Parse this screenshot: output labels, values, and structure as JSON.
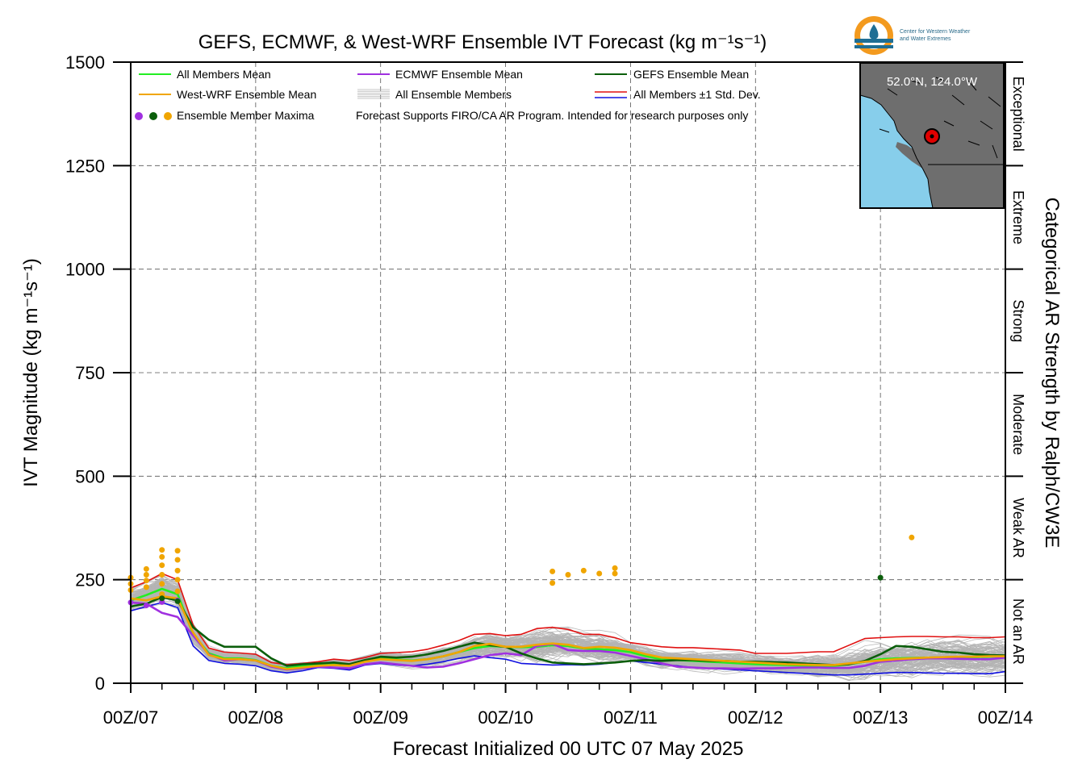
{
  "colors": {
    "all_mean": "#22ee22",
    "westwrf_mean": "#f0a500",
    "ecmwf_mean": "#a030e0",
    "gefs_mean": "#0b5e0b",
    "members": "#b4b4b4",
    "std_upper": "#e01010",
    "std_lower": "#1010e0",
    "map_land": "#6e6e6e",
    "map_ocean": "#87ceeb",
    "logo_orange": "#f39a1e",
    "logo_blue": "#1f6e94"
  },
  "logo": {
    "line1": "Center for Western Weather",
    "line2": "and Water Extremes"
  },
  "inset_map": {
    "location_label": "52.0°N, 124.0°W"
  },
  "chart_data": {
    "type": "line",
    "title": "GEFS, ECMWF, & West-WRF Ensemble IVT Forecast (kg m⁻¹s⁻¹)",
    "xlabel": "Forecast Initialized 00 UTC 07 May 2025",
    "ylabel": "IVT Magnitude (kg m⁻¹s⁻¹)",
    "right_axis_label": "Categorical AR Strength by Ralph/CW3E",
    "xlim_hours": [
      0,
      168
    ],
    "ylim": [
      0,
      1500
    ],
    "grid": true,
    "x_ticks": [
      {
        "hour": 0,
        "label": "00Z/07"
      },
      {
        "hour": 24,
        "label": "00Z/08"
      },
      {
        "hour": 48,
        "label": "00Z/09"
      },
      {
        "hour": 72,
        "label": "00Z/10"
      },
      {
        "hour": 96,
        "label": "00Z/11"
      },
      {
        "hour": 120,
        "label": "00Z/12"
      },
      {
        "hour": 144,
        "label": "00Z/13"
      },
      {
        "hour": 168,
        "label": "00Z/14"
      }
    ],
    "y_ticks": [
      0,
      250,
      500,
      750,
      1000,
      1250,
      1500
    ],
    "ar_categories": [
      {
        "label": "Not an AR",
        "min": 0,
        "max": 250
      },
      {
        "label": "Weak AR",
        "min": 250,
        "max": 500
      },
      {
        "label": "Moderate",
        "min": 500,
        "max": 750
      },
      {
        "label": "Strong",
        "min": 750,
        "max": 1000
      },
      {
        "label": "Extreme",
        "min": 1000,
        "max": 1250
      },
      {
        "label": "Exceptional",
        "min": 1250,
        "max": 1500
      }
    ],
    "legend": {
      "placement": "top-left",
      "items": [
        {
          "label": "All Members Mean",
          "kind": "line",
          "series": "all_mean"
        },
        {
          "label": "ECMWF Ensemble Mean",
          "kind": "line",
          "series": "ecmwf_mean"
        },
        {
          "label": "GEFS Ensemble Mean",
          "kind": "line",
          "series": "gefs_mean"
        },
        {
          "label": "West-WRF Ensemble Mean",
          "kind": "line",
          "series": "westwrf_mean"
        },
        {
          "label": "All Ensemble Members",
          "kind": "members"
        },
        {
          "label": "All Members ±1 Std. Dev.",
          "kind": "std"
        },
        {
          "label": "Ensemble Member Maxima",
          "kind": "dots"
        }
      ],
      "note": "Forecast Supports FIRO/CA AR Program. Intended for research purposes only"
    },
    "series": [
      {
        "key": "std_upper",
        "name": "All Members ±1 Std. Dev.",
        "x": [
          0,
          3,
          6,
          9,
          12,
          15,
          18,
          21,
          24,
          27,
          30,
          33,
          36,
          39,
          42,
          45,
          48,
          51,
          54,
          57,
          60,
          63,
          66,
          69,
          72,
          75,
          78,
          81,
          84,
          87,
          90,
          93,
          96,
          99,
          102,
          105,
          108,
          111,
          114,
          117,
          120,
          123,
          126,
          129,
          132,
          135,
          138,
          141,
          144,
          147,
          150,
          153,
          156,
          159,
          162,
          165,
          168
        ],
        "y": [
          230,
          245,
          265,
          250,
          140,
          85,
          75,
          73,
          70,
          50,
          45,
          48,
          52,
          58,
          55,
          62,
          72,
          74,
          76,
          82,
          92,
          103,
          118,
          120,
          115,
          118,
          132,
          135,
          130,
          118,
          118,
          110,
          98,
          93,
          88,
          86,
          86,
          84,
          82,
          80,
          72,
          72,
          72,
          74,
          76,
          76,
          92,
          108,
          110,
          112,
          113,
          113,
          112,
          112,
          110,
          110,
          112
        ]
      },
      {
        "key": "all_mean",
        "name": "All Members Mean",
        "x": [
          0,
          3,
          6,
          9,
          12,
          15,
          18,
          21,
          24,
          27,
          30,
          33,
          36,
          39,
          42,
          45,
          48,
          51,
          54,
          57,
          60,
          63,
          66,
          69,
          72,
          75,
          78,
          81,
          84,
          87,
          90,
          93,
          96,
          99,
          102,
          105,
          108,
          111,
          114,
          117,
          120,
          123,
          126,
          129,
          132,
          135,
          138,
          141,
          144,
          147,
          150,
          153,
          156,
          159,
          162,
          165,
          168
        ],
        "y": [
          200,
          213,
          228,
          215,
          118,
          72,
          60,
          60,
          56,
          42,
          36,
          42,
          44,
          46,
          44,
          55,
          60,
          57,
          55,
          58,
          65,
          75,
          85,
          90,
          88,
          87,
          88,
          92,
          90,
          84,
          82,
          80,
          75,
          65,
          58,
          56,
          54,
          52,
          50,
          48,
          46,
          45,
          44,
          43,
          42,
          42,
          46,
          52,
          58,
          60,
          61,
          62,
          62,
          63,
          63,
          64,
          65
        ]
      },
      {
        "key": "westwrf_mean",
        "name": "West-WRF Ensemble Mean",
        "x": [
          0,
          3,
          6,
          9,
          12,
          15,
          18,
          21,
          24,
          27,
          30,
          33,
          36,
          39,
          42,
          45,
          48,
          51,
          54,
          57,
          60,
          63,
          66,
          69,
          72,
          75,
          78,
          81,
          84,
          87,
          90,
          93,
          96,
          99,
          102,
          105,
          108,
          111,
          114,
          117,
          120,
          123,
          126,
          129,
          132,
          135,
          138,
          141,
          144,
          147,
          150,
          153,
          156,
          159,
          162,
          165,
          168
        ],
        "y": [
          205,
          200,
          210,
          205,
          122,
          68,
          58,
          58,
          55,
          42,
          34,
          38,
          42,
          44,
          42,
          52,
          58,
          56,
          54,
          58,
          65,
          75,
          90,
          95,
          88,
          88,
          93,
          96,
          93,
          85,
          88,
          86,
          80,
          70,
          62,
          60,
          58,
          56,
          54,
          52,
          50,
          48,
          46,
          45,
          44,
          44,
          48,
          52,
          55,
          58,
          60,
          62,
          63,
          64,
          64,
          65,
          65
        ]
      },
      {
        "key": "gefs_mean",
        "name": "GEFS Ensemble Mean",
        "x": [
          0,
          3,
          6,
          9,
          12,
          15,
          18,
          21,
          24,
          27,
          30,
          33,
          36,
          39,
          42,
          45,
          48,
          51,
          54,
          57,
          60,
          63,
          66,
          69,
          72,
          75,
          78,
          81,
          84,
          87,
          90,
          93,
          96,
          99,
          102,
          105,
          108,
          111,
          114,
          117,
          120,
          123,
          126,
          129,
          132,
          135,
          138,
          141,
          144,
          147,
          150,
          153,
          156,
          159,
          162,
          165,
          168
        ],
        "y": [
          185,
          192,
          208,
          200,
          135,
          105,
          88,
          88,
          88,
          60,
          42,
          46,
          48,
          50,
          46,
          56,
          64,
          62,
          64,
          70,
          78,
          88,
          98,
          92,
          88,
          72,
          60,
          50,
          48,
          46,
          48,
          50,
          54,
          56,
          54,
          56,
          56,
          54,
          54,
          52,
          52,
          51,
          50,
          48,
          46,
          44,
          46,
          54,
          70,
          90,
          88,
          82,
          76,
          74,
          70,
          68,
          67
        ]
      },
      {
        "key": "ecmwf_mean",
        "name": "ECMWF Ensemble Mean",
        "x": [
          0,
          3,
          6,
          9,
          12,
          15,
          18,
          21,
          24,
          27,
          30,
          33,
          36,
          39,
          42,
          45,
          48,
          51,
          54,
          57,
          60,
          63,
          66,
          69,
          72,
          75,
          78,
          81,
          84,
          87,
          90,
          93,
          96,
          99,
          102,
          105,
          108,
          111,
          114,
          117,
          120,
          123,
          126,
          129,
          132,
          135,
          138,
          141,
          144,
          147,
          150,
          153,
          156,
          159,
          162,
          165,
          168
        ],
        "y": [
          195,
          192,
          170,
          160,
          115,
          70,
          55,
          58,
          55,
          40,
          33,
          36,
          40,
          38,
          36,
          46,
          50,
          46,
          42,
          38,
          40,
          48,
          58,
          68,
          72,
          68,
          90,
          95,
          80,
          78,
          78,
          74,
          66,
          58,
          48,
          40,
          38,
          36,
          36,
          35,
          36,
          36,
          37,
          38,
          38,
          37,
          37,
          42,
          52,
          55,
          58,
          60,
          60,
          59,
          58,
          58,
          62
        ]
      },
      {
        "key": "std_lower",
        "name": "All Members ±1 Std. Dev.",
        "x": [
          0,
          3,
          6,
          9,
          12,
          15,
          18,
          21,
          24,
          27,
          30,
          33,
          36,
          39,
          42,
          45,
          48,
          51,
          54,
          57,
          60,
          63,
          66,
          69,
          72,
          75,
          78,
          81,
          84,
          87,
          90,
          93,
          96,
          99,
          102,
          105,
          108,
          111,
          114,
          117,
          120,
          123,
          126,
          129,
          132,
          135,
          138,
          141,
          144,
          147,
          150,
          153,
          156,
          159,
          162,
          165,
          168
        ],
        "y": [
          175,
          185,
          195,
          183,
          90,
          55,
          48,
          46,
          42,
          30,
          25,
          30,
          38,
          36,
          32,
          44,
          48,
          44,
          42,
          46,
          52,
          60,
          66,
          62,
          58,
          48,
          46,
          44,
          45,
          44,
          46,
          50,
          54,
          50,
          46,
          42,
          38,
          36,
          34,
          32,
          30,
          28,
          26,
          24,
          22,
          20,
          20,
          22,
          24,
          26,
          26,
          25,
          24,
          24,
          23,
          23,
          28
        ]
      }
    ],
    "member_maxima": [
      {
        "color": "westwrf_mean",
        "x": [
          0,
          0,
          0,
          3,
          3,
          3,
          3,
          6,
          6,
          6,
          6,
          6,
          6,
          9,
          9,
          9,
          9,
          9
        ],
        "y": [
          225,
          240,
          255,
          232,
          248,
          262,
          276,
          215,
          240,
          262,
          285,
          305,
          322,
          222,
          250,
          272,
          298,
          320
        ]
      },
      {
        "color": "ecmwf_mean",
        "x": [
          0,
          3,
          6,
          9
        ],
        "y": [
          195,
          188,
          196,
          200
        ]
      },
      {
        "color": "gefs_mean",
        "x": [
          6,
          9
        ],
        "y": [
          205,
          198
        ]
      },
      {
        "color": "westwrf_mean",
        "x": [
          81,
          81,
          84,
          87,
          90,
          93,
          93
        ],
        "y": [
          270,
          242,
          262,
          272,
          265,
          278,
          265
        ]
      },
      {
        "color": "gefs_mean",
        "x": [
          144
        ],
        "y": [
          255
        ]
      },
      {
        "color": "westwrf_mean",
        "x": [
          150
        ],
        "y": [
          352
        ]
      }
    ]
  }
}
